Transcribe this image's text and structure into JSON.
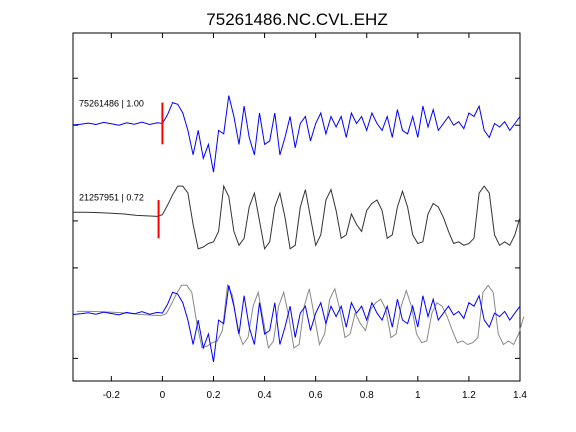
{
  "chart_data": {
    "type": "line",
    "title": "75261486.NC.CVL.EHZ",
    "xlim": [
      -0.35,
      1.4
    ],
    "xticks": [
      -0.2,
      0,
      0.2,
      0.4,
      0.6,
      0.8,
      1,
      1.2,
      1.4
    ],
    "xtick_labels": [
      "-0.2",
      "0",
      "0.2",
      "0.4",
      "0.6",
      "0.8",
      "1",
      "1.2",
      "1.4"
    ],
    "ylim": [
      0,
      1
    ],
    "grid": false,
    "traces": [
      {
        "name": "75261486 | 1.00",
        "color": "#0000ff",
        "pick_time": 0.0,
        "pick_color": "#ff0000",
        "x": [
          -0.35,
          -0.32,
          -0.29,
          -0.26,
          -0.23,
          -0.2,
          -0.17,
          -0.14,
          -0.11,
          -0.08,
          -0.05,
          -0.02,
          0.0,
          0.02,
          0.04,
          0.06,
          0.08,
          0.1,
          0.12,
          0.14,
          0.16,
          0.18,
          0.2,
          0.22,
          0.24,
          0.26,
          0.28,
          0.3,
          0.32,
          0.34,
          0.36,
          0.38,
          0.4,
          0.42,
          0.44,
          0.46,
          0.48,
          0.5,
          0.52,
          0.54,
          0.56,
          0.58,
          0.6,
          0.62,
          0.64,
          0.66,
          0.68,
          0.7,
          0.72,
          0.74,
          0.76,
          0.78,
          0.8,
          0.82,
          0.84,
          0.86,
          0.88,
          0.9,
          0.92,
          0.94,
          0.96,
          0.98,
          1.0,
          1.02,
          1.04,
          1.06,
          1.08,
          1.1,
          1.12,
          1.14,
          1.16,
          1.18,
          1.2,
          1.22,
          1.24,
          1.26,
          1.28,
          1.3,
          1.32,
          1.34,
          1.36,
          1.38,
          1.4
        ],
        "y": [
          0.736,
          0.738,
          0.741,
          0.737,
          0.743,
          0.739,
          0.735,
          0.742,
          0.738,
          0.744,
          0.737,
          0.742,
          0.74,
          0.765,
          0.8,
          0.795,
          0.77,
          0.72,
          0.65,
          0.72,
          0.64,
          0.68,
          0.6,
          0.72,
          0.71,
          0.82,
          0.76,
          0.68,
          0.79,
          0.7,
          0.65,
          0.77,
          0.68,
          0.69,
          0.77,
          0.65,
          0.7,
          0.76,
          0.67,
          0.74,
          0.76,
          0.69,
          0.74,
          0.77,
          0.71,
          0.76,
          0.73,
          0.76,
          0.7,
          0.77,
          0.74,
          0.76,
          0.72,
          0.77,
          0.74,
          0.72,
          0.76,
          0.7,
          0.78,
          0.72,
          0.71,
          0.76,
          0.7,
          0.79,
          0.73,
          0.78,
          0.72,
          0.74,
          0.76,
          0.735,
          0.745,
          0.725,
          0.77,
          0.76,
          0.79,
          0.72,
          0.7,
          0.74,
          0.73,
          0.745,
          0.72,
          0.74,
          0.76
        ]
      },
      {
        "name": "21257951 | 0.72",
        "color": "#333333",
        "pick_time": -0.015,
        "pick_color": "#ff0000",
        "x": [
          -0.35,
          -0.3,
          -0.25,
          -0.2,
          -0.15,
          -0.1,
          -0.05,
          -0.02,
          0.0,
          0.02,
          0.04,
          0.06,
          0.08,
          0.1,
          0.12,
          0.14,
          0.16,
          0.18,
          0.2,
          0.22,
          0.24,
          0.26,
          0.28,
          0.3,
          0.32,
          0.34,
          0.36,
          0.38,
          0.4,
          0.42,
          0.44,
          0.46,
          0.48,
          0.5,
          0.52,
          0.54,
          0.56,
          0.58,
          0.6,
          0.62,
          0.64,
          0.66,
          0.68,
          0.7,
          0.72,
          0.74,
          0.76,
          0.78,
          0.8,
          0.82,
          0.84,
          0.86,
          0.88,
          0.9,
          0.92,
          0.94,
          0.96,
          0.98,
          1.0,
          1.02,
          1.04,
          1.06,
          1.08,
          1.1,
          1.12,
          1.14,
          1.16,
          1.18,
          1.2,
          1.22,
          1.24,
          1.26,
          1.28,
          1.3,
          1.32,
          1.34,
          1.36,
          1.38,
          1.4
        ],
        "y": [
          0.485,
          0.485,
          0.484,
          0.482,
          0.48,
          0.476,
          0.474,
          0.473,
          0.478,
          0.505,
          0.535,
          0.56,
          0.56,
          0.54,
          0.45,
          0.38,
          0.385,
          0.395,
          0.4,
          0.43,
          0.56,
          0.53,
          0.43,
          0.39,
          0.41,
          0.5,
          0.54,
          0.46,
          0.38,
          0.4,
          0.5,
          0.54,
          0.47,
          0.38,
          0.39,
          0.5,
          0.55,
          0.47,
          0.39,
          0.42,
          0.52,
          0.55,
          0.49,
          0.41,
          0.42,
          0.48,
          0.45,
          0.43,
          0.49,
          0.51,
          0.52,
          0.49,
          0.41,
          0.42,
          0.5,
          0.545,
          0.5,
          0.42,
          0.395,
          0.4,
          0.48,
          0.51,
          0.5,
          0.47,
          0.43,
          0.395,
          0.4,
          0.39,
          0.395,
          0.41,
          0.54,
          0.56,
          0.54,
          0.42,
          0.39,
          0.4,
          0.39,
          0.42,
          0.47
        ]
      }
    ],
    "overlay": {
      "colors": [
        "#888888",
        "#0000ff"
      ],
      "description_series": [
        "21257951 | 0.72",
        "75261486 | 1.00"
      ]
    }
  }
}
